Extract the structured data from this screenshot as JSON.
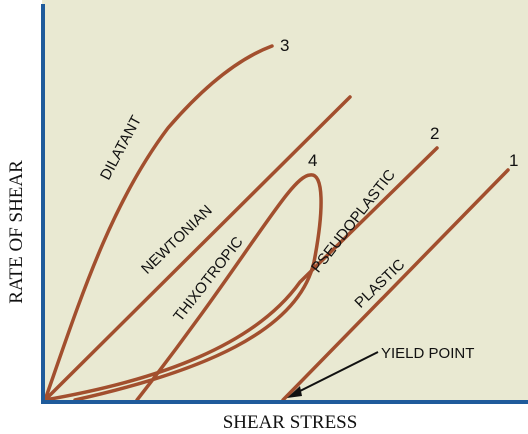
{
  "x_axis_label": "SHEAR STRESS",
  "y_axis_label": "RATE OF SHEAR",
  "curves": [
    {
      "number": "3",
      "label": "DILATANT"
    },
    {
      "label": "NEWTONIAN"
    },
    {
      "number": "4",
      "label": "THIXOTROPIC"
    },
    {
      "number": "2",
      "label": "PSEUDOPLASTIC"
    },
    {
      "number": "1",
      "label": "PLASTIC"
    }
  ],
  "annotation": "YIELD POINT"
}
